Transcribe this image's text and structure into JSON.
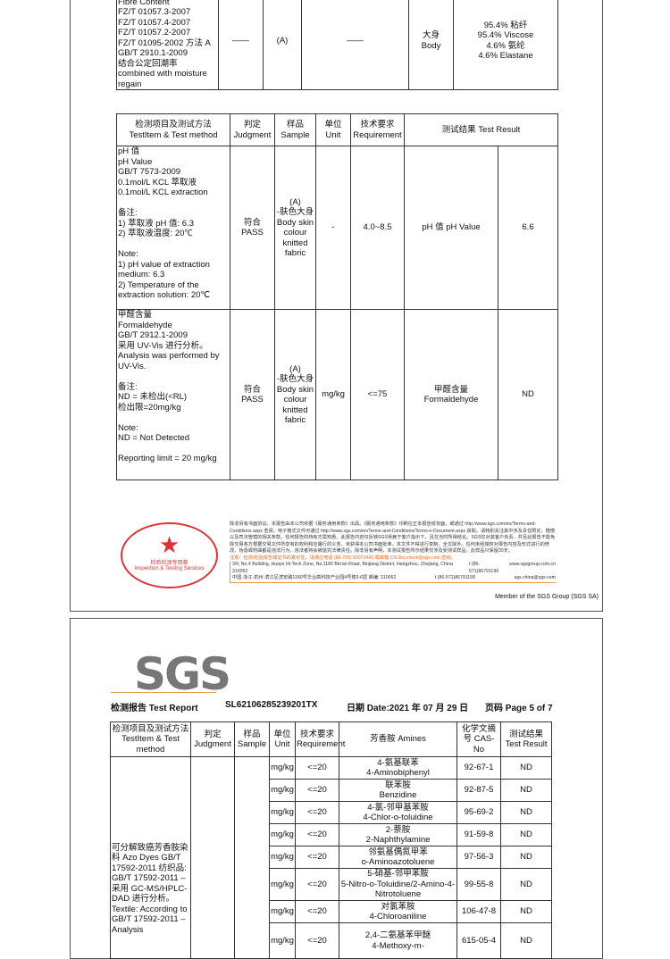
{
  "fibre": {
    "method": [
      "Fibre Content",
      "FZ/T 01057.3-2007",
      "FZ/T 01057.4-2007",
      "FZ/T 01057.2-2007",
      "FZ/T 01095-2002 方法 A",
      "GB/T 2910.1-2009",
      "结合公定回潮率",
      "combined with moisture",
      "regain"
    ],
    "judgment": "——",
    "sample": "(A)",
    "unit": "——",
    "part": "大身\nBody",
    "result": [
      "95.4% 粘纤",
      "95.4% Viscose",
      "4.6% 氨纶",
      "4.6% Elastane"
    ]
  },
  "t2": {
    "headers": [
      "检测项目及测试方法\nTestItem & Test method",
      "判定\nJudgment",
      "样品\nSample",
      "单位\nUnit",
      "技术要求\nRequirement",
      "测试结果\nTest Result"
    ],
    "rows": [
      {
        "method": "pH 值\npH Value\nGB/T 7573-2009\n0.1mol/L KCL 萃取液\n0.1mol/L KCL extraction\n\n备注:\n1) 萃取液 pH 值: 6.3\n2) 萃取液温度: 20℃\n\nNote:\n1) pH value of extraction medium: 6.3\n2) Temperature of the extraction solution: 20℃",
        "judgment": "符合\nPASS",
        "sample": "(A)\n-肤色大身 Body skin colour knitted fabric",
        "unit": "-",
        "req": "4.0~8.5",
        "item": "pH 值 pH Value",
        "result": "6.6"
      },
      {
        "method": "甲醛含量\nFormaldehyde\nGB/T 2912.1-2009\n采用 UV-Vis 进行分析。\nAnalysis was performed by UV-Vis.\n\n备注:\nND = 未检出(<RL)\n检出限=20mg/kg\n\nNote:\nND = Not Detected\n\nReporting limit = 20 mg/kg",
        "judgment": "符合\nPASS",
        "sample": "(A)\n-肤色大身 Body skin colour knitted fabric",
        "unit": "mg/kg",
        "req": "<=75",
        "item": "甲醛含量\nFormaldehyde",
        "result": "ND"
      }
    ]
  },
  "footer": {
    "stamp": "检验检测专用章 Inspection & Testing Services",
    "terms": "除非另有书面协议，本报告由本公司依据《服务通用条款》出具。《服务通用条款》印刷在正本报告纸背面，或通过 http://www.sgs.com/en/Terms-and-Conditions.aspx 查阅，电子格式文件可通过 http://www.sgs.com/en/Terms-and-Conditions/Terms-e-Document.aspx 获取。请特别关注其中涉及责任限定、赔偿以及司法管辖的相关条款。任何报告的持有方需知悉，此报告内容仅反映SGS受雇于客户指示下，且在当时所得结论。SGS仅对其客户负责，并且此报告不能免除交易各方根据交易文件所享有的权利和应履行的义务。未获得本公司书面批准，本文件不得进行复制，全文除外。任何未经授权对报告内容及形式进行的修改、伪造或附曲都是违法行为，违法者将会被追究法律责任。除非另有声明，本测试报告所示结果仅涉及受测试样品，此样品只保留30天。",
    "verify": "注意：检测/检验报告或证书的真实性，请通过电话 (86-755) 83071443 或邮箱 CN.Doccheck@sgs.com 查询。",
    "addr_en": "3/F, No.4 Building, Huaye Hi-Tech Zone, No.1180 Bin'an Road, Binjiang District, Hangzhou, Zhejiang, China 310052",
    "addr_cn": "中国·浙江·杭州·滨江区滨安路1180号华业高科技产业园4号楼3-6层  邮编: 310052",
    "tel": "t (86-571)86791199",
    "web": "www.sgsgroup.com.cn",
    "email": "sgs.china@sgs.com",
    "member": "Member of the SGS Group (SGS SA)"
  },
  "page2": {
    "logo": "SGS",
    "report_label": "检测报告  Test Report",
    "report_no": "SL62106285239201TX",
    "date": "日期 Date:2021 年 07 月 29 日",
    "page": "页码 Page 5 of 7",
    "headers": [
      "检测项目及测试方法\nTestItem & Test method",
      "判定\nJudgment",
      "样品\nSample",
      "单位\nUnit",
      "技术要求\nRequirement",
      "芳香胺\nAmines",
      "化学文摘号\nCAS-No",
      "测试结果\nTest Result"
    ],
    "method": "可分解致癌芳香胺染料\nAzo Dyes\nGB/T 17592-2011\n纺织品: GB/T 17592-2011 – 采用 GC-MS/HPLC-DAD 进行分析。\nTextile: According to GB/T 17592-2011 – Analysis",
    "rows": [
      {
        "unit": "mg/kg",
        "req": "<=20",
        "amine": "4-氨基联苯\n4-Aminobiphenyl",
        "cas": "92-67-1",
        "result": "ND"
      },
      {
        "unit": "mg/kg",
        "req": "<=20",
        "amine": "联苯胺\nBenzidine",
        "cas": "92-87-5",
        "result": "ND"
      },
      {
        "unit": "mg/kg",
        "req": "<=20",
        "amine": "4-氯-邻甲基苯胺\n4-Chlor-o-toluidine",
        "cas": "95-69-2",
        "result": "ND"
      },
      {
        "unit": "mg/kg",
        "req": "<=20",
        "amine": "2-萘胺\n2-Naphthylamine",
        "cas": "91-59-8",
        "result": "ND"
      },
      {
        "unit": "mg/kg",
        "req": "<=20",
        "amine": "邻氨基偶氮甲苯\no-Aminoazotoluene",
        "cas": "97-56-3",
        "result": "ND"
      },
      {
        "unit": "mg/kg",
        "req": "<=20",
        "amine": "5-硝基-邻甲苯胺\n5-Nitro-o-Toluidine/2-Amino-4-Nitrotoluene",
        "cas": "99-55-8",
        "result": "ND"
      },
      {
        "unit": "mg/kg",
        "req": "<=20",
        "amine": "对氯苯胺\n4-Chloroaniline",
        "cas": "106-47-8",
        "result": "ND"
      },
      {
        "unit": "mg/kg",
        "req": "<=20",
        "amine": "2,4-二氨基苯甲醚\n4-Methoxy-m-",
        "cas": "615-05-4",
        "result": "ND"
      }
    ]
  }
}
